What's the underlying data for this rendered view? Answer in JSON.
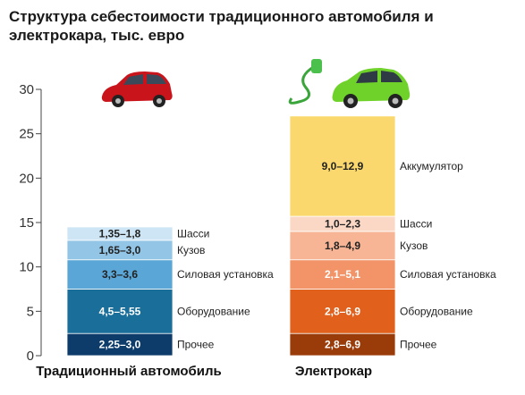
{
  "chart_data": {
    "type": "bar",
    "stacked": true,
    "title": "Структура себестоимости традиционного автомобиля и электрокара, тыс. евро",
    "ylim": [
      0,
      30
    ],
    "yticks": [
      0,
      5,
      10,
      15,
      20,
      25,
      30
    ],
    "categories": [
      "Традиционный автомобиль",
      "Электрокар"
    ],
    "series": [
      {
        "name": "Прочее",
        "values": [
          2.5,
          2.5
        ],
        "labels": [
          "2,25–3,0",
          "2,8–6,9"
        ],
        "colors": [
          "#0d3c6b",
          "#9a3b0a"
        ]
      },
      {
        "name": "Оборудование",
        "values": [
          5.0,
          5.0
        ],
        "labels": [
          "4,5–5,55",
          "2,8–6,9"
        ],
        "colors": [
          "#1a6e9a",
          "#e0601c"
        ]
      },
      {
        "name": "Силовая установка",
        "values": [
          3.3,
          3.3
        ],
        "labels": [
          "3,3–3,6",
          "2,1–5,1"
        ],
        "colors": [
          "#5aa6d6",
          "#f29467"
        ]
      },
      {
        "name": "Кузов",
        "values": [
          2.2,
          3.2
        ],
        "labels": [
          "1,65–3,0",
          "1,8–4,9"
        ],
        "colors": [
          "#93c6e6",
          "#f7b595"
        ]
      },
      {
        "name": "Шасси",
        "values": [
          1.5,
          1.7
        ],
        "labels": [
          "1,35–1,8",
          "1,0–2,3"
        ],
        "colors": [
          "#cde5f4",
          "#fbd8c6"
        ]
      },
      {
        "name": "Аккумулятор",
        "values": [
          0,
          11.3
        ],
        "labels": [
          "",
          "9,0–12,9"
        ],
        "colors": [
          "#ffffff",
          "#fbd86d"
        ]
      }
    ],
    "label_colors": {
      "dark": "#ffffff",
      "light": "#222222"
    }
  }
}
